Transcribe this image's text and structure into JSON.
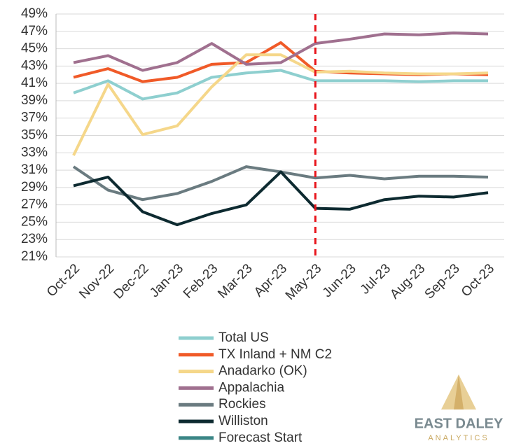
{
  "chart_data": {
    "type": "line",
    "categories": [
      "Oct-22",
      "Nov-22",
      "Dec-22",
      "Jan-23",
      "Feb-23",
      "Mar-23",
      "Apr-23",
      "May-23",
      "Jun-23",
      "Jul-23",
      "Aug-23",
      "Sep-23",
      "Oct-23"
    ],
    "series": [
      {
        "name": "Total US",
        "color": "#8ecfcf",
        "values": [
          39.9,
          41.3,
          39.2,
          39.9,
          41.7,
          42.2,
          42.5,
          41.3,
          41.3,
          41.3,
          41.2,
          41.3,
          41.3
        ]
      },
      {
        "name": "TX Inland + NM C2",
        "color": "#f05a28",
        "values": [
          41.7,
          42.7,
          41.2,
          41.7,
          43.2,
          43.4,
          45.7,
          42.4,
          42.2,
          42.1,
          42.0,
          42.1,
          42.0
        ]
      },
      {
        "name": "Anadarko (OK)",
        "color": "#f5d78a",
        "values": [
          32.7,
          40.9,
          35.1,
          36.1,
          40.6,
          44.3,
          44.3,
          42.3,
          42.4,
          42.2,
          42.1,
          42.1,
          42.2
        ]
      },
      {
        "name": "Appalachia",
        "color": "#a0708f",
        "values": [
          43.4,
          44.2,
          42.5,
          43.4,
          45.6,
          43.2,
          43.4,
          45.6,
          46.1,
          46.7,
          46.6,
          46.8,
          46.7
        ]
      },
      {
        "name": "Rockies",
        "color": "#6a7b80",
        "values": [
          31.4,
          28.7,
          27.6,
          28.3,
          29.7,
          31.4,
          30.8,
          30.1,
          30.4,
          30.0,
          30.3,
          30.3,
          30.2
        ]
      },
      {
        "name": "Williston",
        "color": "#0d2a30",
        "values": [
          29.2,
          30.2,
          26.2,
          24.7,
          26.0,
          27.0,
          30.8,
          26.6,
          26.5,
          27.6,
          28.0,
          27.9,
          28.4
        ]
      }
    ],
    "forecast_start": {
      "name": "Forecast Start",
      "category": "May-23",
      "color": "#e8141b",
      "legend_color": "#3b8686"
    },
    "ylim": [
      21,
      49
    ],
    "yticks": [
      {
        "value": 21,
        "label": "21%"
      },
      {
        "value": 23,
        "label": "23%"
      },
      {
        "value": 25,
        "label": "25%"
      },
      {
        "value": 27,
        "label": "27%"
      },
      {
        "value": 29,
        "label": "29%"
      },
      {
        "value": 31,
        "label": "31%"
      },
      {
        "value": 33,
        "label": "33%"
      },
      {
        "value": 35,
        "label": "35%"
      },
      {
        "value": 37,
        "label": "37%"
      },
      {
        "value": 39,
        "label": "39%"
      },
      {
        "value": 41,
        "label": "41%"
      },
      {
        "value": 43,
        "label": "43%"
      },
      {
        "value": 45,
        "label": "45%"
      },
      {
        "value": 47,
        "label": "47%"
      },
      {
        "value": 49,
        "label": "49%"
      }
    ],
    "grid": true,
    "logo": {
      "name": "EAST DALEY",
      "sub": "ANALYTICS"
    }
  }
}
